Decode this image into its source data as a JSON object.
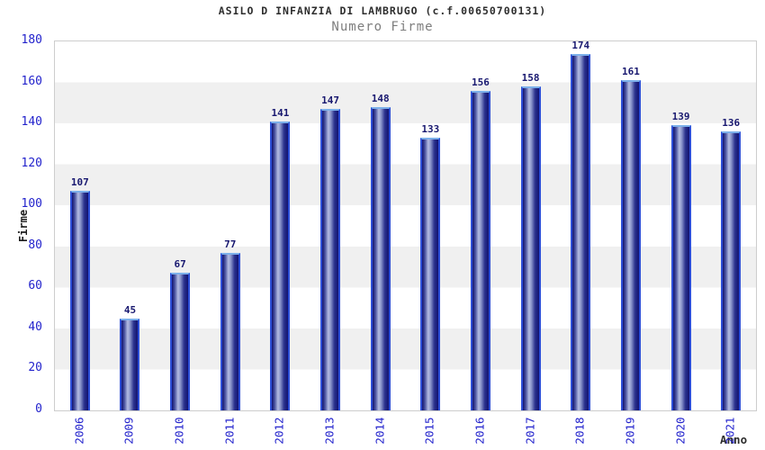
{
  "header": {
    "title": "ASILO D INFANZIA DI LAMBRUGO (c.f.00650700131)",
    "subtitle": "Numero Firme"
  },
  "chart_data": {
    "type": "bar",
    "title": "ASILO D INFANZIA DI LAMBRUGO (c.f.00650700131)",
    "subtitle": "Numero Firme",
    "categories": [
      "2006",
      "2009",
      "2010",
      "2011",
      "2012",
      "2013",
      "2014",
      "2015",
      "2016",
      "2017",
      "2018",
      "2019",
      "2020",
      "2021"
    ],
    "values": [
      107,
      45,
      67,
      77,
      141,
      147,
      148,
      133,
      156,
      158,
      174,
      161,
      139,
      136
    ],
    "xlabel": "Anno",
    "ylabel": "Firme",
    "ylim": [
      0,
      180
    ],
    "yticks": [
      0,
      20,
      40,
      60,
      80,
      100,
      120,
      140,
      160,
      180
    ],
    "grid": "alternating-horizontal-bands",
    "legend": "none",
    "value_labels": "above-bars"
  },
  "colors": {
    "bar_dark": "#12126e",
    "bar_light": "#b4bce2",
    "bar_border": "#2d4fd8",
    "bar_border_top": "#7db0ea",
    "band_gray": "#f0f0f0",
    "band_white": "#ffffff",
    "plot_border": "#cdcdcd",
    "tick_text": "#2222cc",
    "value_text": "#191970",
    "title_text": "#2e2e2e",
    "subtitle_text": "#7e7e7e",
    "axis_label_text": "#1c1c1c"
  }
}
